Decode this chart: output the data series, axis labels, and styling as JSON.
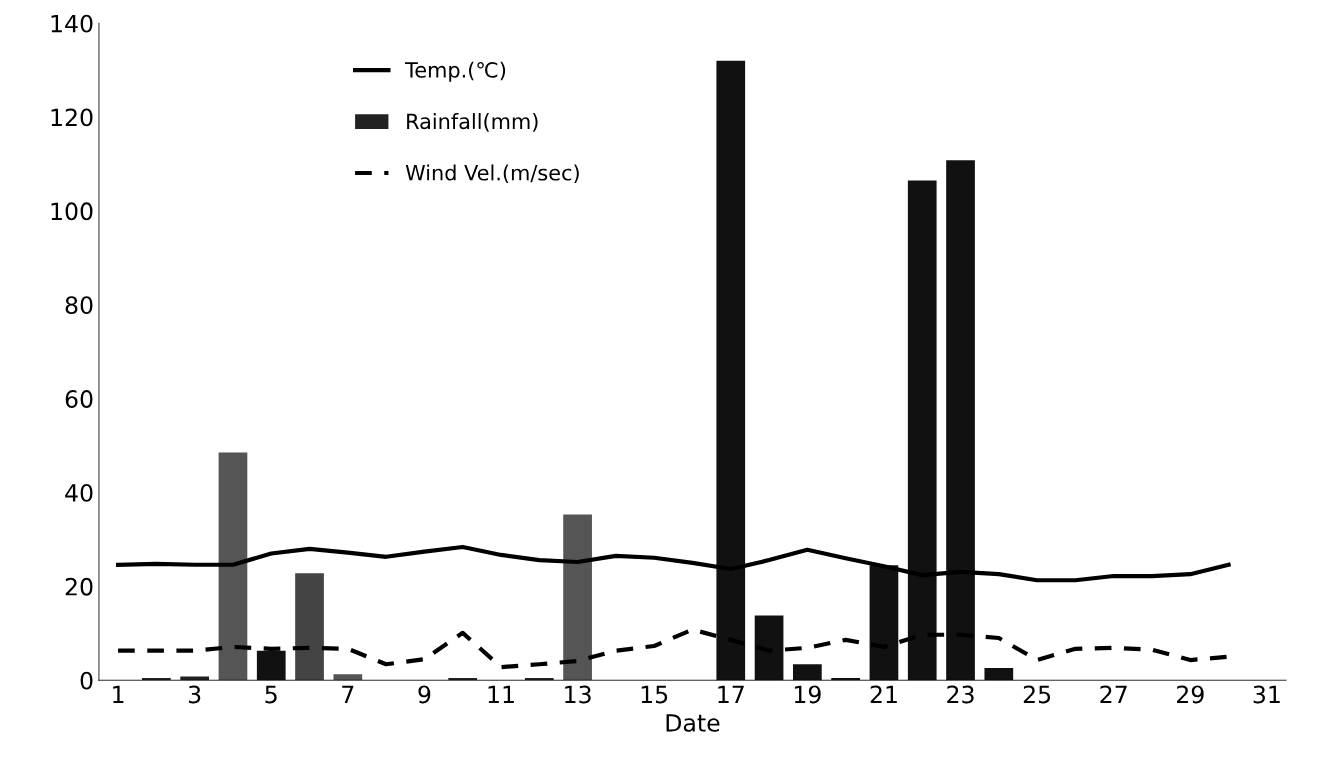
{
  "chart_data": {
    "type": "bar",
    "xlabel": "Date",
    "x": [
      1,
      2,
      3,
      4,
      5,
      6,
      7,
      8,
      9,
      10,
      11,
      12,
      13,
      14,
      15,
      16,
      17,
      18,
      19,
      20,
      21,
      22,
      23,
      24,
      25,
      26,
      27,
      28,
      29,
      30
    ],
    "series": [
      {
        "name": "Temp.(℃)",
        "type": "line",
        "color": "#000000",
        "line_style": "solid",
        "values": [
          24.6,
          24.8,
          24.6,
          24.6,
          27,
          28,
          27.2,
          26.3,
          27.4,
          28.4,
          26.7,
          25.6,
          25.2,
          26.5,
          26.1,
          25,
          23.7,
          25.6,
          27.8,
          26,
          24.3,
          22.4,
          23.1,
          22.6,
          21.3,
          21.3,
          22.2,
          22.2,
          22.6,
          24.6
        ]
      },
      {
        "name": "Rainfall(mm)",
        "color": "#222222",
        "colors": [
          "#222222",
          "#222222",
          "#222222",
          "#555555",
          "#111111",
          "#444444",
          "#555555",
          "#222222",
          "#222222",
          "#222222",
          "#222222",
          "#222222",
          "#555555",
          "#222222",
          "#222222",
          "#222222",
          "#111111",
          "#111111",
          "#111111",
          "#111111",
          "#111111",
          "#111111",
          "#111111",
          "#111111",
          "#222222",
          "#222222",
          "#222222",
          "#222222",
          "#222222",
          "#222222"
        ],
        "values": [
          0,
          0.5,
          0.8,
          48.5,
          6.3,
          22.8,
          1.3,
          0,
          0,
          0.5,
          0,
          0.5,
          35.3,
          0,
          0,
          0,
          132,
          13.8,
          3.4,
          0.5,
          24.5,
          106.5,
          110.8,
          2.6,
          0,
          0,
          0,
          0,
          0,
          0
        ]
      },
      {
        "name": "Wind Vel.(m/sec)",
        "type": "line",
        "color": "#000000",
        "line_style": "dashed",
        "values": [
          6.3,
          6.3,
          6.3,
          7.1,
          6.7,
          6.9,
          6.7,
          3.4,
          4.5,
          10.1,
          2.8,
          3.4,
          4.1,
          6.3,
          7.3,
          10.8,
          8.6,
          6.3,
          6.9,
          8.6,
          7.1,
          9.7,
          9.7,
          9,
          4.3,
          6.7,
          6.9,
          6.5,
          4.3,
          5
        ]
      }
    ],
    "xlim": [
      0.5,
      31.5
    ],
    "xticks": [
      1,
      3,
      5,
      7,
      9,
      11,
      13,
      15,
      17,
      19,
      21,
      23,
      25,
      27,
      29,
      31
    ],
    "ylim": [
      0,
      140
    ],
    "yticks": [
      0,
      20,
      40,
      60,
      80,
      100,
      120,
      140
    ],
    "grid": false,
    "legend": "top left"
  }
}
